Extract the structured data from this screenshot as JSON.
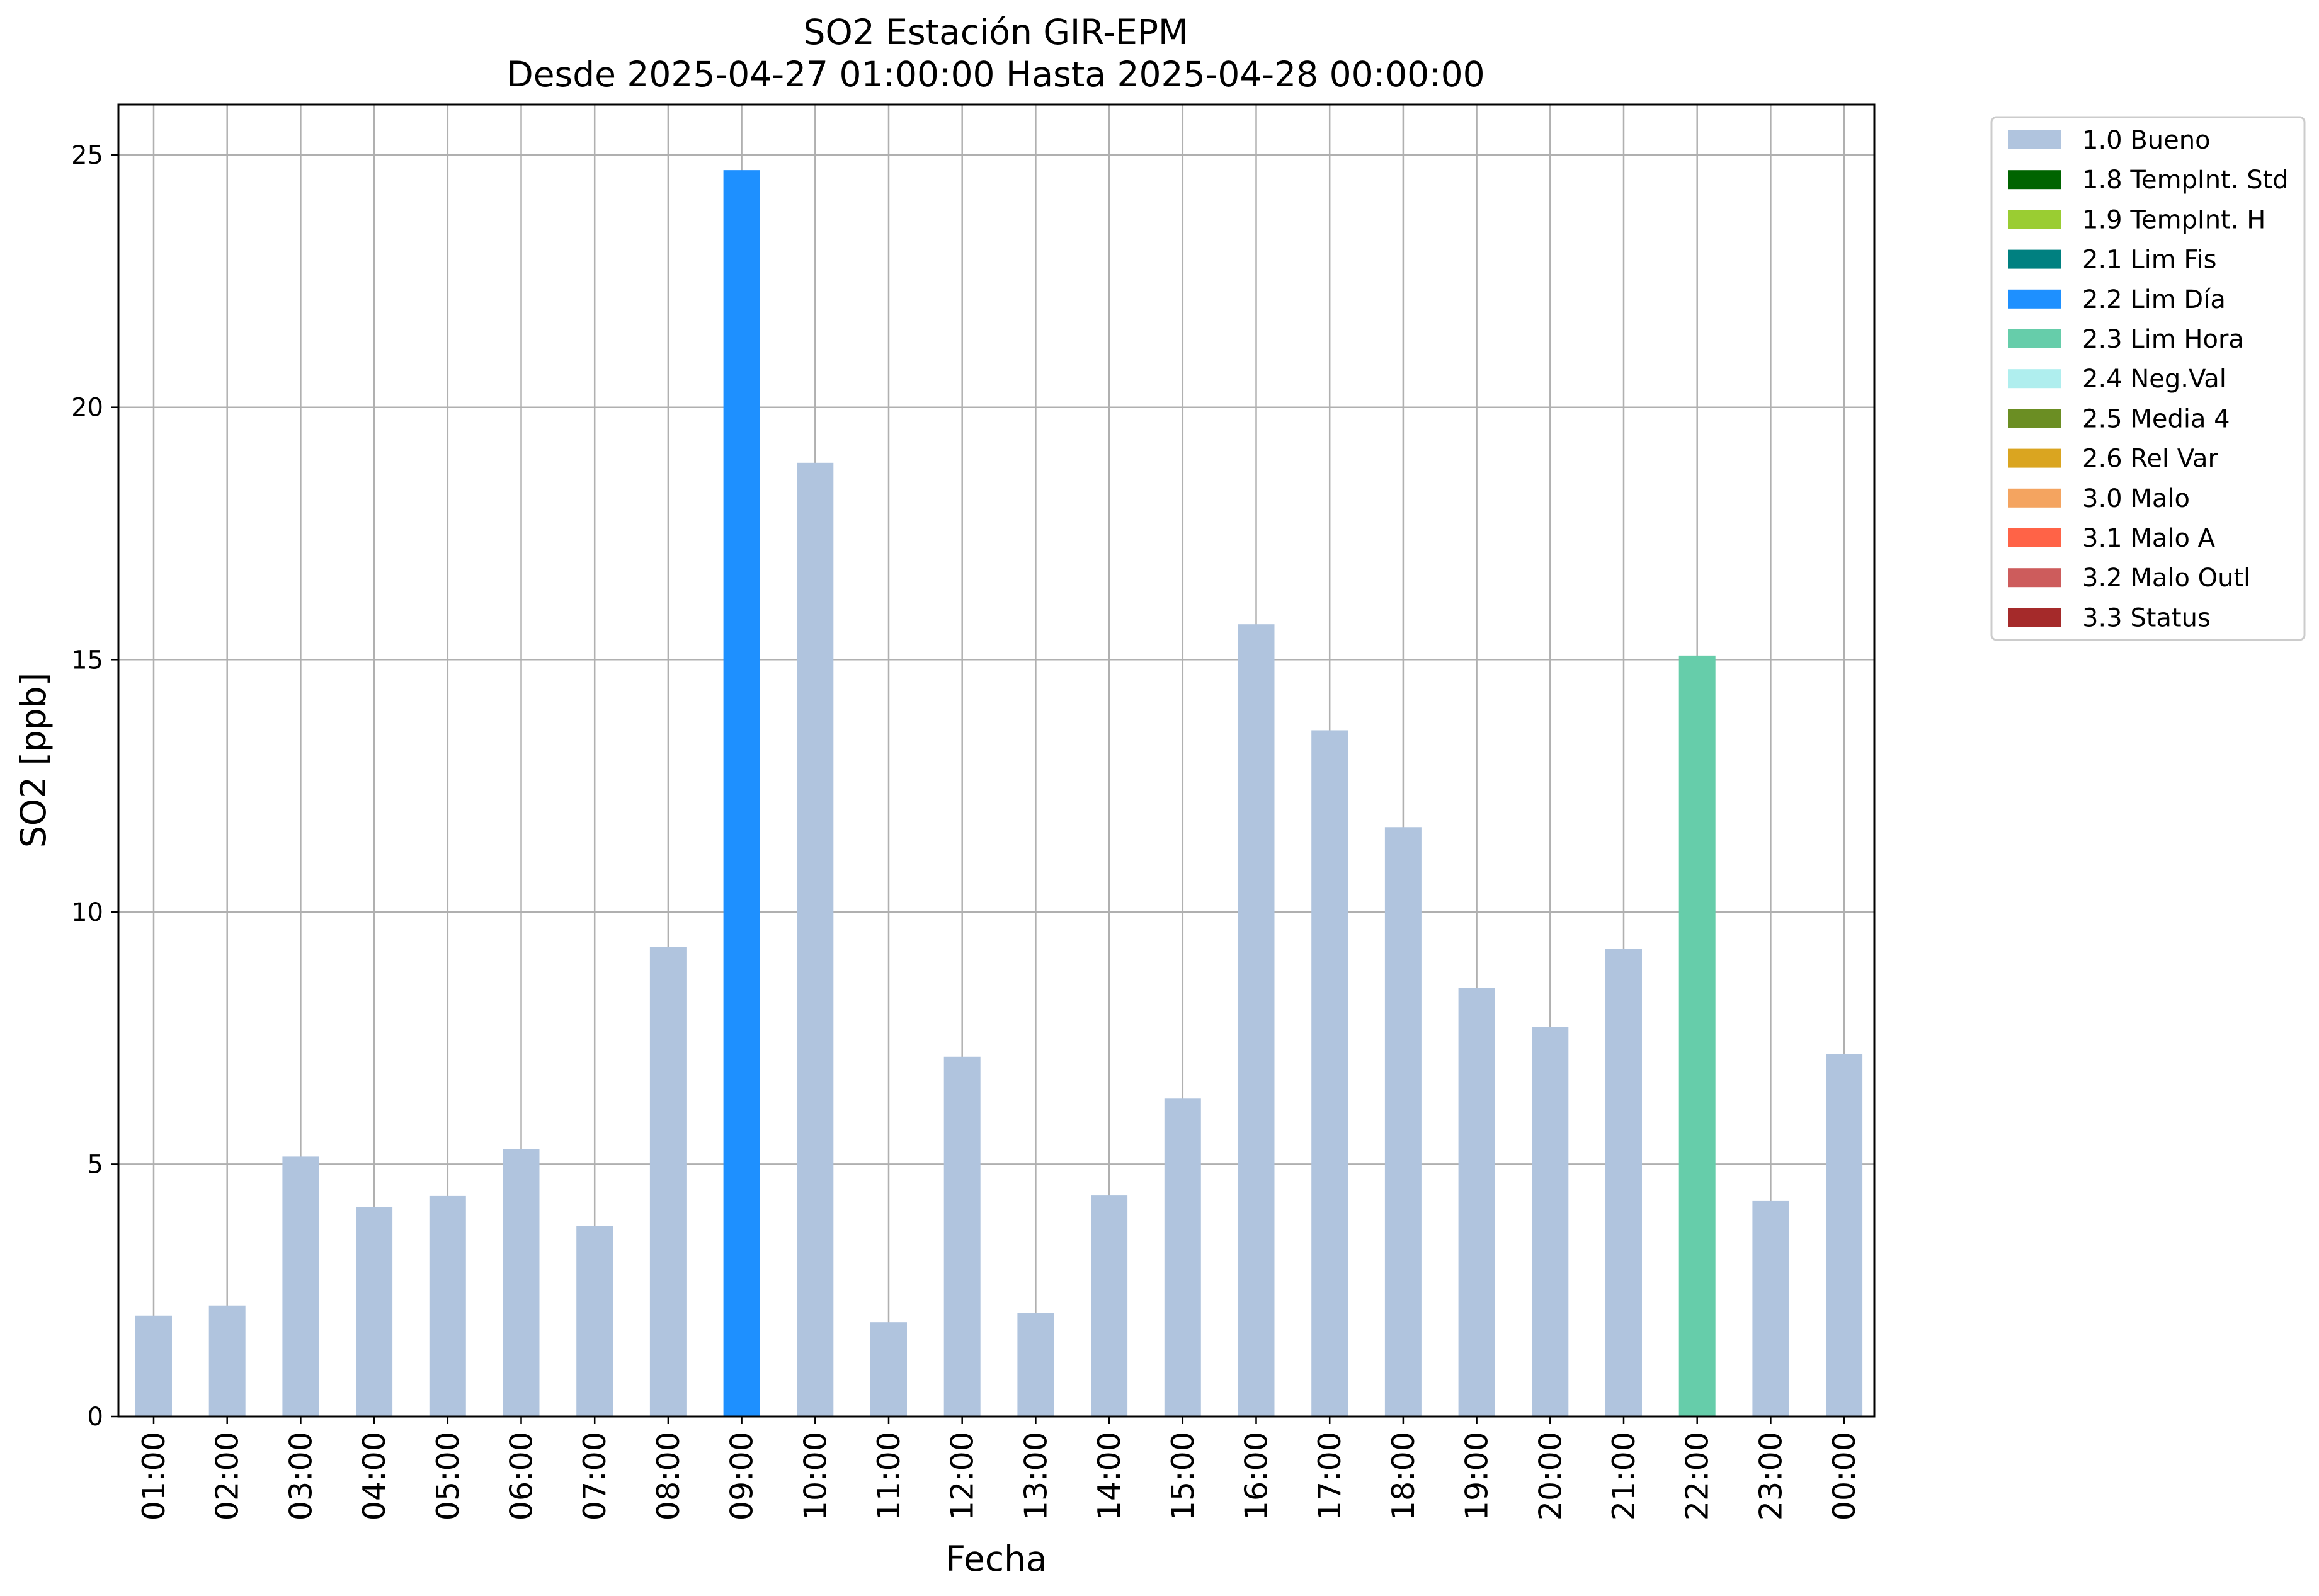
{
  "chart_data": {
    "type": "bar",
    "title": "SO2 Estación GIR-EPM",
    "subtitle": "Desde 2025-04-27 01:00:00 Hasta 2025-04-28 00:00:00",
    "xlabel": "Fecha",
    "ylabel": "SO2 [ppb]",
    "ylim": [
      0,
      26
    ],
    "yticks": [
      0,
      5,
      10,
      15,
      20,
      25
    ],
    "grid": true,
    "legend_position": "outside-top-right",
    "categories": [
      "01:00",
      "02:00",
      "03:00",
      "04:00",
      "05:00",
      "06:00",
      "07:00",
      "08:00",
      "09:00",
      "10:00",
      "11:00",
      "12:00",
      "13:00",
      "14:00",
      "15:00",
      "16:00",
      "17:00",
      "18:00",
      "19:00",
      "20:00",
      "21:00",
      "22:00",
      "23:00",
      "00:00"
    ],
    "values": [
      2.0,
      2.2,
      5.15,
      4.15,
      4.37,
      5.3,
      3.78,
      9.3,
      24.7,
      18.9,
      1.87,
      7.13,
      2.05,
      4.38,
      6.3,
      15.7,
      13.6,
      11.68,
      8.5,
      7.72,
      9.27,
      15.08,
      4.27,
      7.18
    ],
    "bar_flags": [
      "1.0 Bueno",
      "1.0 Bueno",
      "1.0 Bueno",
      "1.0 Bueno",
      "1.0 Bueno",
      "1.0 Bueno",
      "1.0 Bueno",
      "1.0 Bueno",
      "2.2 Lim Día",
      "1.0 Bueno",
      "1.0 Bueno",
      "1.0 Bueno",
      "1.0 Bueno",
      "1.0 Bueno",
      "1.0 Bueno",
      "1.0 Bueno",
      "1.0 Bueno",
      "1.0 Bueno",
      "1.0 Bueno",
      "1.0 Bueno",
      "1.0 Bueno",
      "2.3 Lim Hora",
      "1.0 Bueno",
      "1.0 Bueno"
    ],
    "legend": [
      {
        "label": "1.0 Bueno",
        "color": "#b0c4de"
      },
      {
        "label": "1.8 TempInt. Std",
        "color": "#006400"
      },
      {
        "label": "1.9 TempInt. H",
        "color": "#9acd32"
      },
      {
        "label": "2.1 Lim Fis",
        "color": "#008080"
      },
      {
        "label": "2.2 Lim Día",
        "color": "#1e90ff"
      },
      {
        "label": "2.3 Lim Hora",
        "color": "#66cdaa"
      },
      {
        "label": "2.4 Neg.Val",
        "color": "#afeeee"
      },
      {
        "label": "2.5 Media 4",
        "color": "#6b8e23"
      },
      {
        "label": "2.6 Rel Var",
        "color": "#daa520"
      },
      {
        "label": "3.0 Malo",
        "color": "#f4a460"
      },
      {
        "label": "3.1 Malo A",
        "color": "#ff6347"
      },
      {
        "label": "3.2 Malo Outl",
        "color": "#cd5c5c"
      },
      {
        "label": "3.3 Status",
        "color": "#a52a2a"
      }
    ]
  }
}
